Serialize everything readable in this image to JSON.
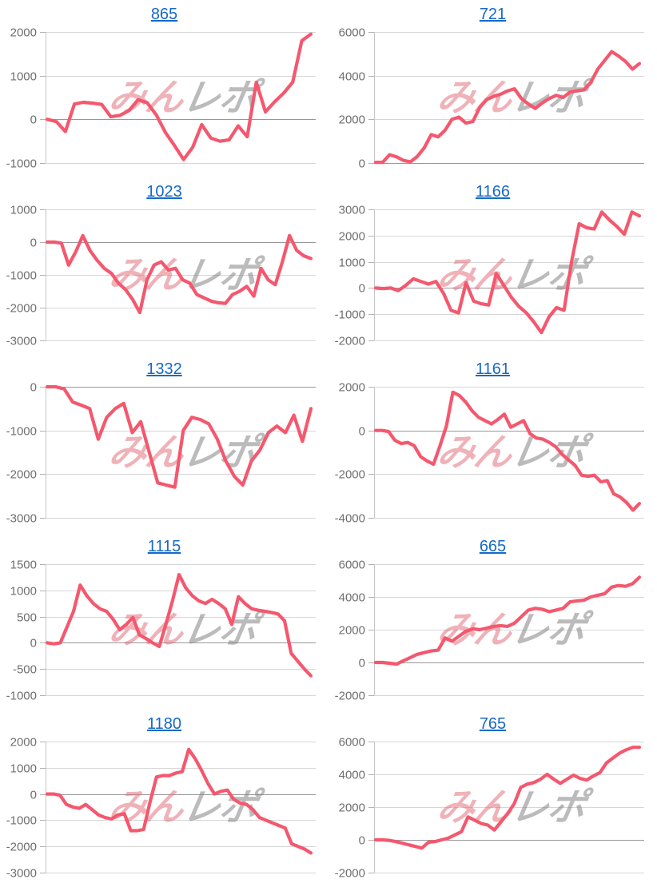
{
  "page": {
    "background": "#ffffff"
  },
  "watermark": {
    "pink_text": "みん",
    "gray_text": "レポ",
    "pink_color": "rgba(224,101,113,0.50)",
    "gray_color": "rgba(132,132,132,0.55)"
  },
  "style": {
    "line_color": "#f4586e",
    "title_color": "#1669c7",
    "grid_color": "#d6d6d6",
    "zero_color": "#989898",
    "axis_color": "#c6c6c6",
    "tick_stub_color": "#b2b2b2",
    "tick_label_color": "#6f6f6f"
  },
  "chart_data": [
    {
      "type": "line",
      "title": "865",
      "ticks": [
        2000,
        1000,
        0,
        -1000
      ],
      "ylim": [
        -1000,
        2000
      ],
      "grid": true,
      "values": [
        0,
        -50,
        -280,
        350,
        390,
        370,
        340,
        60,
        90,
        200,
        450,
        380,
        100,
        -300,
        -600,
        -920,
        -640,
        -120,
        -430,
        -500,
        -470,
        -150,
        -400,
        850,
        170,
        400,
        600,
        850,
        1800,
        1950
      ]
    },
    {
      "type": "line",
      "title": "721",
      "ticks": [
        6000,
        4000,
        2000,
        0
      ],
      "ylim": [
        0,
        6000
      ],
      "grid": true,
      "values": [
        30,
        30,
        380,
        280,
        120,
        50,
        300,
        700,
        1300,
        1200,
        1500,
        2000,
        2100,
        1830,
        1900,
        2550,
        2900,
        3050,
        3150,
        3300,
        3400,
        2950,
        2700,
        2500,
        2750,
        2950,
        3100,
        3000,
        3250,
        3300,
        3350,
        3700,
        4300,
        4700,
        5100,
        4900,
        4650,
        4300,
        4550
      ]
    },
    {
      "type": "line",
      "title": "1023",
      "ticks": [
        1000,
        0,
        -1000,
        -2000,
        -3000
      ],
      "ylim": [
        -3000,
        1000
      ],
      "grid": true,
      "values": [
        0,
        0,
        -30,
        -700,
        -300,
        200,
        -250,
        -550,
        -800,
        -950,
        -1250,
        -1450,
        -1750,
        -2150,
        -1150,
        -700,
        -600,
        -850,
        -800,
        -1150,
        -1250,
        -1600,
        -1700,
        -1800,
        -1850,
        -1870,
        -1600,
        -1500,
        -1350,
        -1650,
        -800,
        -1150,
        -1300,
        -600,
        200,
        -250,
        -420,
        -500
      ]
    },
    {
      "type": "line",
      "title": "1166",
      "ticks": [
        3000,
        2000,
        1000,
        0,
        -1000,
        -2000
      ],
      "ylim": [
        -2000,
        3000
      ],
      "grid": true,
      "values": [
        0,
        -20,
        0,
        -100,
        100,
        350,
        250,
        150,
        250,
        -200,
        -850,
        -950,
        200,
        -500,
        -600,
        -650,
        550,
        100,
        -350,
        -700,
        -950,
        -1300,
        -1700,
        -1100,
        -750,
        -850,
        1000,
        2450,
        2300,
        2250,
        2900,
        2600,
        2350,
        2050,
        2900,
        2750
      ]
    },
    {
      "type": "line",
      "title": "1332",
      "ticks": [
        0,
        -1000,
        -2000,
        -3000
      ],
      "ylim": [
        -3000,
        0
      ],
      "grid": true,
      "values": [
        0,
        0,
        -50,
        -350,
        -420,
        -500,
        -1200,
        -700,
        -500,
        -380,
        -1050,
        -800,
        -1500,
        -2200,
        -2250,
        -2300,
        -1000,
        -700,
        -750,
        -850,
        -1200,
        -1700,
        -2050,
        -2250,
        -1700,
        -1450,
        -1050,
        -900,
        -1050,
        -650,
        -1250,
        -500
      ]
    },
    {
      "type": "line",
      "title": "1161",
      "ticks": [
        2000,
        0,
        -2000,
        -4000
      ],
      "ylim": [
        -4000,
        2000
      ],
      "grid": true,
      "values": [
        0,
        0,
        -50,
        -450,
        -600,
        -550,
        -700,
        -1200,
        -1400,
        -1550,
        -700,
        200,
        1750,
        1600,
        1300,
        900,
        600,
        450,
        300,
        500,
        750,
        150,
        300,
        450,
        -150,
        -350,
        -400,
        -550,
        -750,
        -1100,
        -1350,
        -1600,
        -2050,
        -2100,
        -2050,
        -2350,
        -2300,
        -2900,
        -3050,
        -3300,
        -3650,
        -3350
      ]
    },
    {
      "type": "line",
      "title": "1115",
      "ticks": [
        1500,
        1000,
        500,
        0,
        -500,
        -1000
      ],
      "ylim": [
        -1000,
        1500
      ],
      "grid": true,
      "values": [
        0,
        -20,
        0,
        300,
        600,
        1100,
        900,
        750,
        650,
        600,
        450,
        250,
        350,
        480,
        150,
        80,
        0,
        -70,
        350,
        800,
        1300,
        1050,
        900,
        800,
        750,
        830,
        750,
        650,
        350,
        880,
        750,
        650,
        620,
        600,
        580,
        550,
        420,
        -200,
        -350,
        -500,
        -630
      ]
    },
    {
      "type": "line",
      "title": "665",
      "ticks": [
        6000,
        4000,
        2000,
        0,
        -2000
      ],
      "ylim": [
        -2000,
        6000
      ],
      "grid": true,
      "values": [
        0,
        0,
        -50,
        -100,
        100,
        300,
        500,
        600,
        700,
        750,
        1500,
        1300,
        1600,
        1900,
        2050,
        2000,
        2100,
        2200,
        2250,
        2200,
        2400,
        2800,
        3200,
        3300,
        3250,
        3100,
        3200,
        3300,
        3700,
        3750,
        3800,
        4000,
        4100,
        4200,
        4600,
        4700,
        4650,
        4800,
        5200
      ]
    },
    {
      "type": "line",
      "title": "1180",
      "ticks": [
        2000,
        1000,
        0,
        -1000,
        -2000,
        -3000
      ],
      "ylim": [
        -3000,
        2000
      ],
      "grid": true,
      "values": [
        0,
        0,
        -50,
        -400,
        -500,
        -550,
        -400,
        -600,
        -800,
        -900,
        -950,
        -800,
        -750,
        -1400,
        -1400,
        -1350,
        -300,
        650,
        700,
        700,
        800,
        850,
        1700,
        1350,
        900,
        400,
        0,
        100,
        150,
        -200,
        -350,
        -400,
        -600,
        -900,
        -1000,
        -1100,
        -1200,
        -1300,
        -1900,
        -2000,
        -2100,
        -2250
      ]
    },
    {
      "type": "line",
      "title": "765",
      "ticks": [
        6000,
        4000,
        2000,
        0,
        -2000
      ],
      "ylim": [
        -2000,
        6000
      ],
      "grid": true,
      "values": [
        0,
        0,
        -30,
        -100,
        -200,
        -300,
        -400,
        -500,
        -150,
        -100,
        0,
        100,
        300,
        500,
        1400,
        1200,
        1000,
        900,
        600,
        1100,
        1600,
        2200,
        3200,
        3400,
        3500,
        3700,
        4000,
        3700,
        3450,
        3700,
        3950,
        3750,
        3650,
        3900,
        4100,
        4700,
        5000,
        5300,
        5500,
        5650,
        5650
      ]
    }
  ]
}
